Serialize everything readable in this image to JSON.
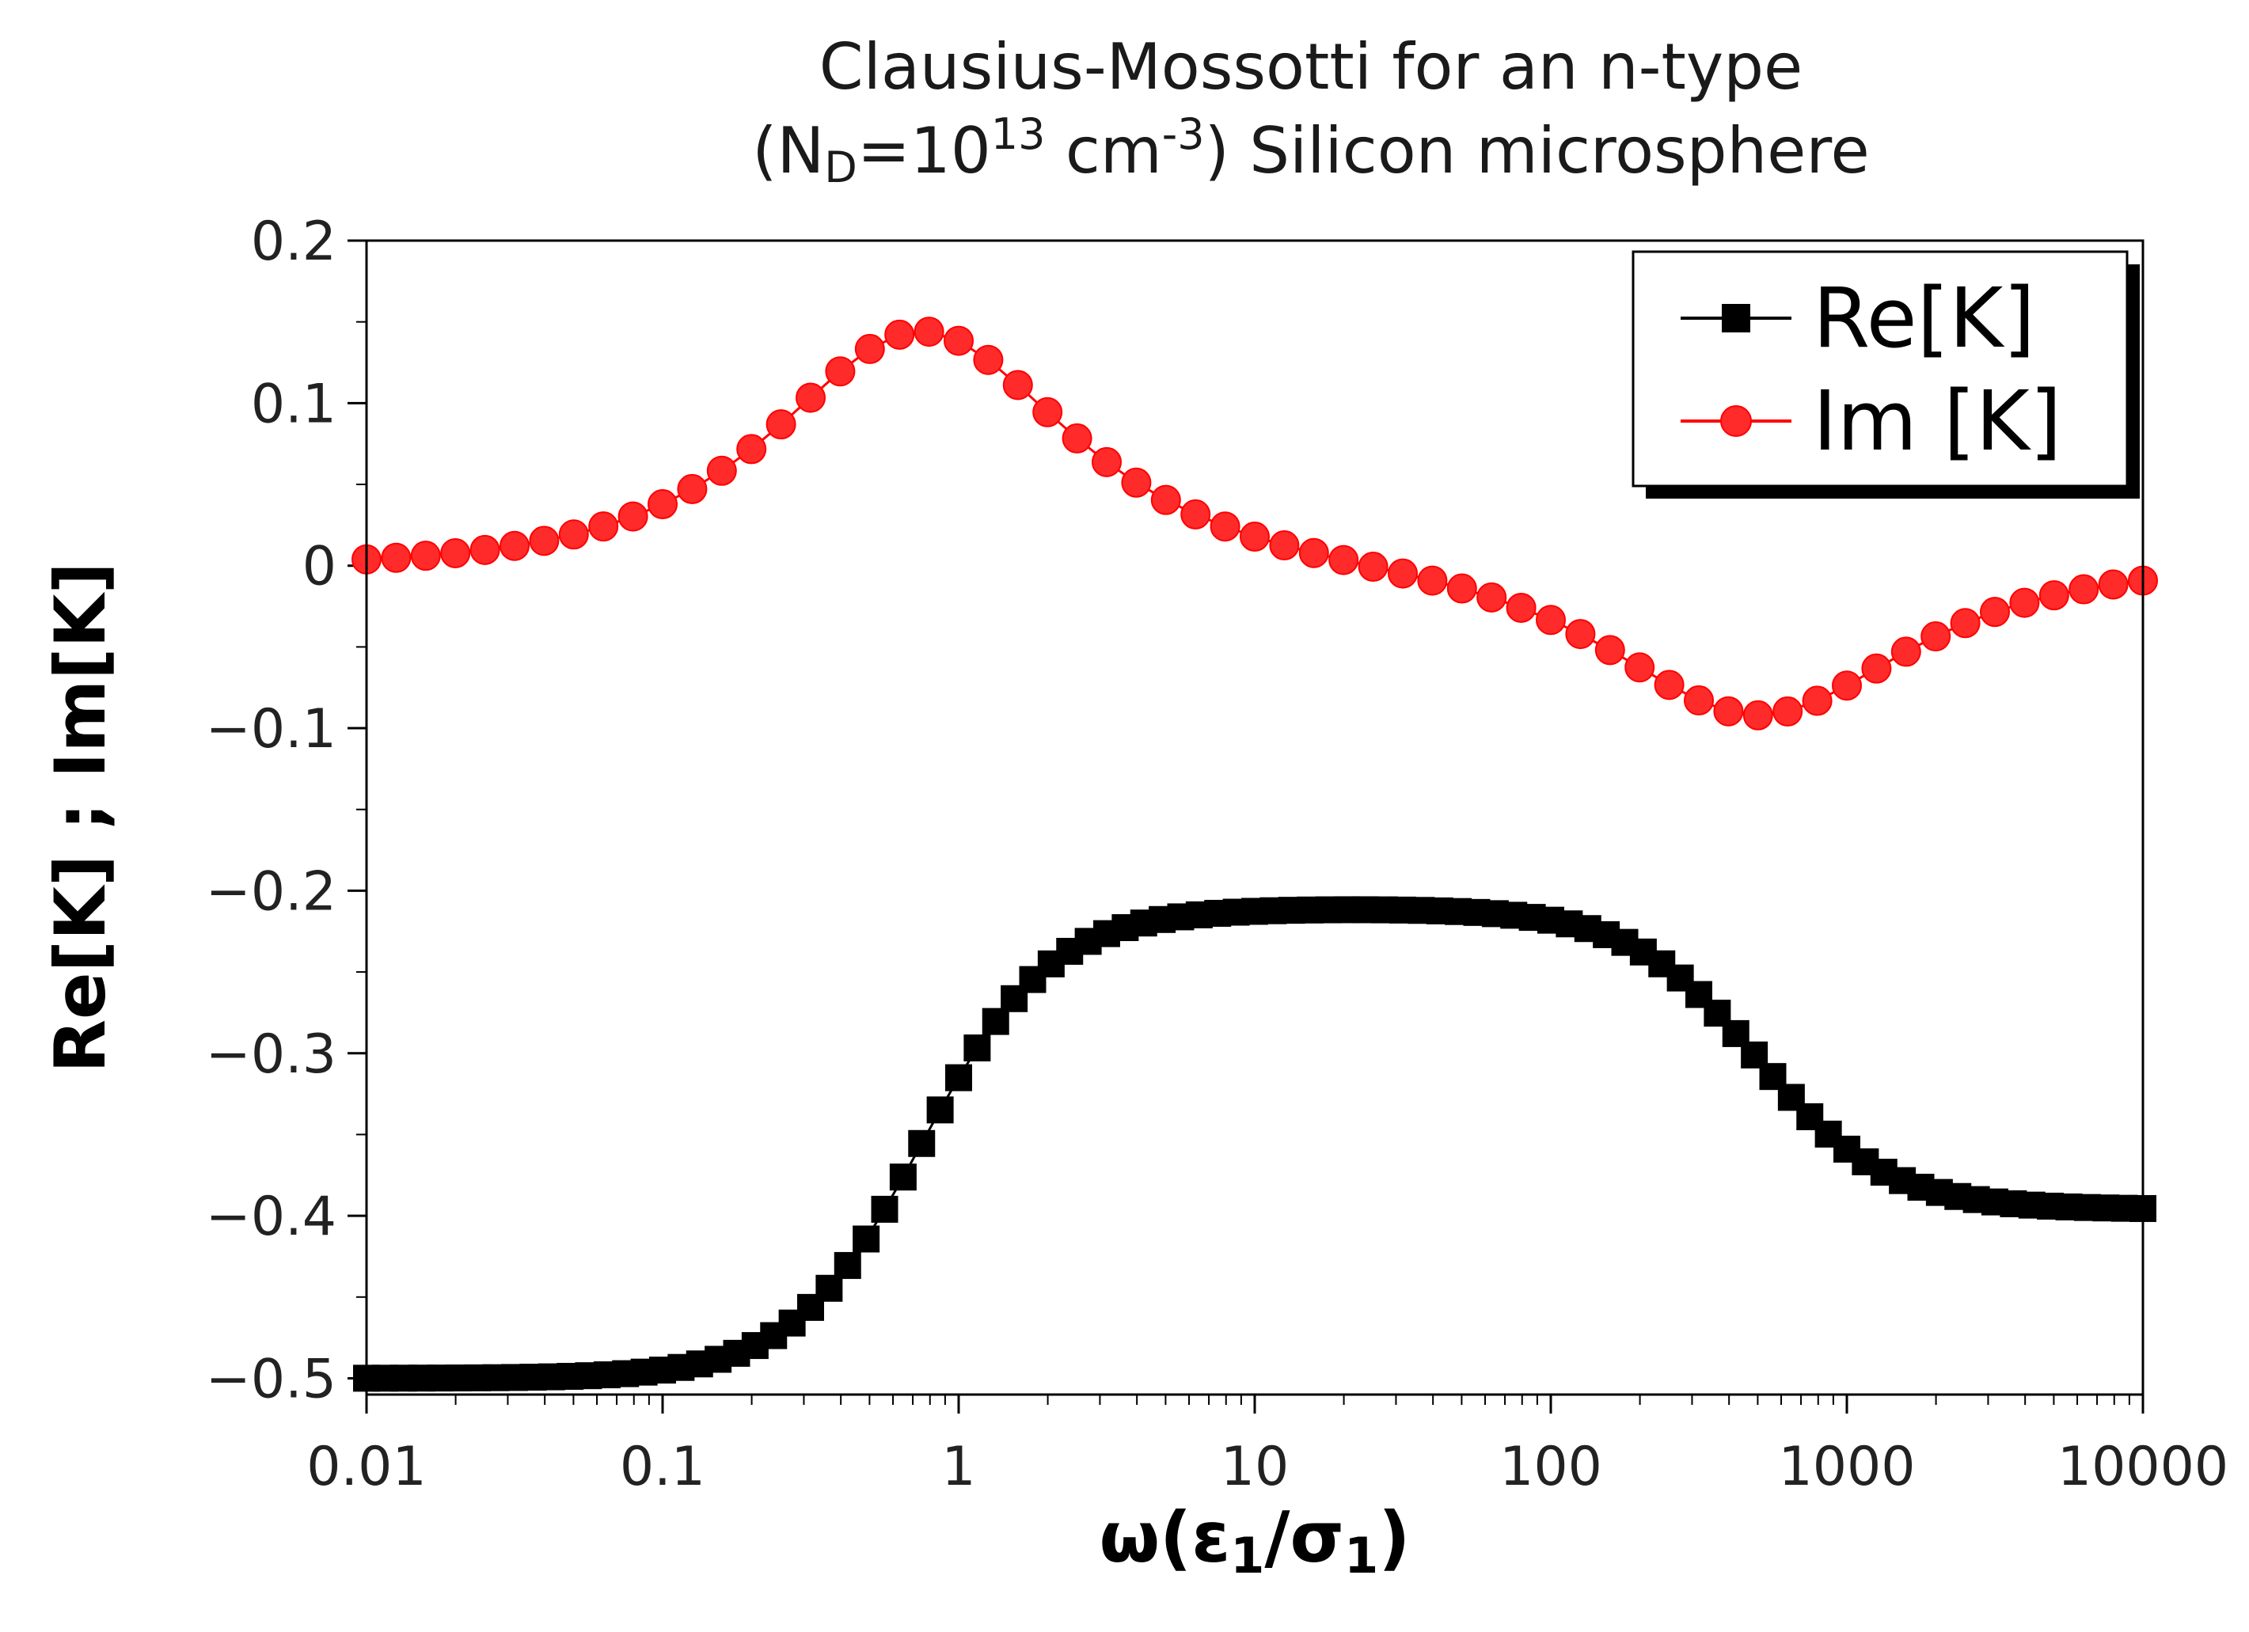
{
  "chart_data": {
    "type": "line",
    "title_line1": "Clausius-Mossotti for an n-type",
    "title_line2": {
      "open": "(N",
      "sub": "D",
      "mid": "=10",
      "sup": "13",
      "unit": " cm",
      "unit_sup": "-3",
      "rest": ") Silicon microsphere"
    },
    "xlabel": {
      "omega": "ω(ε",
      "sub1": "1",
      "slash": "/σ",
      "sub2": "1",
      "close": ")"
    },
    "ylabel": "Re[K] ; Im[K]",
    "x_scale": "log",
    "xlim": [
      0.01,
      10000
    ],
    "ylim": [
      -0.51,
      0.2
    ],
    "x_tick_values": [
      0.01,
      0.1,
      1,
      10,
      100,
      1000,
      10000
    ],
    "x_tick_labels": [
      "0.01",
      "0.1",
      "1",
      "10",
      "100",
      "1000",
      "10000"
    ],
    "y_tick_values": [
      0.2,
      0.1,
      0,
      -0.1,
      -0.2,
      -0.3,
      -0.4,
      -0.5
    ],
    "y_tick_labels": [
      "0.2",
      "0.1",
      "0",
      "−0.1",
      "−0.2",
      "−0.3",
      "−0.4",
      "−0.5"
    ],
    "legend_position": "top-right",
    "series": [
      {
        "name": "Re[K]",
        "color": "#000000",
        "marker": "square",
        "model": {
          "low": -0.5,
          "mid": -0.211,
          "high": -0.396,
          "f1": 0.75,
          "f2": 500
        },
        "log_x_start": -2,
        "log_x_step": 0.0625,
        "count": 97
      },
      {
        "name": "Im [K]",
        "color": "#ff0000",
        "marker": "circle",
        "model": {
          "low": -0.5,
          "mid": -0.211,
          "high": -0.396,
          "f1": 0.75,
          "f2": 500
        },
        "log_x_start": -2,
        "log_x_step": 0.1,
        "count": 61
      }
    ]
  }
}
